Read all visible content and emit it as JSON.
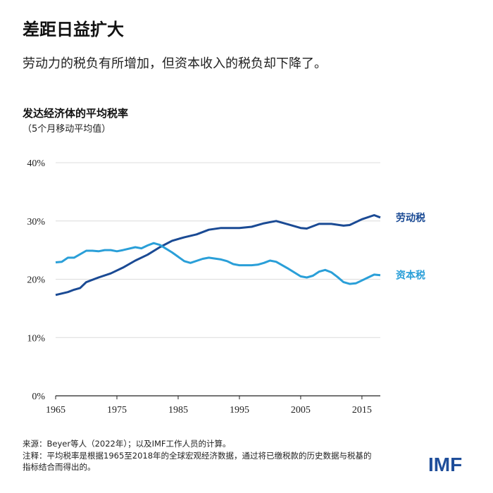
{
  "header": {
    "title": "差距日益扩大",
    "subtitle": "劳动力的税负有所增加，但资本收入的税负却下降了。"
  },
  "chart_data": {
    "type": "line",
    "title": "发达经济体的平均税率",
    "subtitle": "（5个月移动平均值）",
    "xlim": [
      1965,
      2018
    ],
    "ylim": [
      0,
      40
    ],
    "xticks": [
      1965,
      1975,
      1985,
      1995,
      2005,
      2015
    ],
    "xtick_labels": [
      "1965",
      "1975",
      "1985",
      "1995",
      "2005",
      "2015"
    ],
    "yticks": [
      0,
      10,
      20,
      30,
      40
    ],
    "ytick_labels": [
      "0%",
      "10%",
      "20%",
      "30%",
      "40%"
    ],
    "grid": "horizontal",
    "legend": "direct labels at right",
    "series": [
      {
        "name": "劳动税",
        "color": "#1a4a94",
        "points": [
          [
            1965,
            17.3
          ],
          [
            1967,
            17.8
          ],
          [
            1968,
            18.2
          ],
          [
            1969,
            18.5
          ],
          [
            1970,
            19.5
          ],
          [
            1972,
            20.3
          ],
          [
            1974,
            21.0
          ],
          [
            1976,
            22.0
          ],
          [
            1978,
            23.2
          ],
          [
            1980,
            24.2
          ],
          [
            1982,
            25.5
          ],
          [
            1984,
            26.6
          ],
          [
            1986,
            27.2
          ],
          [
            1988,
            27.7
          ],
          [
            1990,
            28.5
          ],
          [
            1992,
            28.8
          ],
          [
            1995,
            28.8
          ],
          [
            1997,
            29.0
          ],
          [
            1999,
            29.6
          ],
          [
            2001,
            30.0
          ],
          [
            2003,
            29.4
          ],
          [
            2005,
            28.8
          ],
          [
            2006,
            28.7
          ],
          [
            2008,
            29.5
          ],
          [
            2010,
            29.5
          ],
          [
            2012,
            29.2
          ],
          [
            2013,
            29.3
          ],
          [
            2015,
            30.3
          ],
          [
            2017,
            31.0
          ],
          [
            2018,
            30.6
          ]
        ]
      },
      {
        "name": "资本税",
        "color": "#2a9fd8",
        "points": [
          [
            1965,
            22.9
          ],
          [
            1966,
            23.0
          ],
          [
            1967,
            23.7
          ],
          [
            1968,
            23.7
          ],
          [
            1970,
            24.9
          ],
          [
            1971,
            24.9
          ],
          [
            1972,
            24.8
          ],
          [
            1973,
            25.0
          ],
          [
            1974,
            25.0
          ],
          [
            1975,
            24.8
          ],
          [
            1976,
            25.0
          ],
          [
            1978,
            25.5
          ],
          [
            1979,
            25.3
          ],
          [
            1980,
            25.8
          ],
          [
            1981,
            26.2
          ],
          [
            1982,
            25.9
          ],
          [
            1984,
            24.6
          ],
          [
            1986,
            23.1
          ],
          [
            1987,
            22.8
          ],
          [
            1989,
            23.5
          ],
          [
            1990,
            23.7
          ],
          [
            1992,
            23.4
          ],
          [
            1993,
            23.1
          ],
          [
            1994,
            22.6
          ],
          [
            1995,
            22.4
          ],
          [
            1997,
            22.4
          ],
          [
            1998,
            22.5
          ],
          [
            1999,
            22.8
          ],
          [
            2000,
            23.2
          ],
          [
            2001,
            23.0
          ],
          [
            2003,
            21.8
          ],
          [
            2005,
            20.5
          ],
          [
            2006,
            20.3
          ],
          [
            2007,
            20.6
          ],
          [
            2008,
            21.3
          ],
          [
            2009,
            21.6
          ],
          [
            2010,
            21.2
          ],
          [
            2011,
            20.4
          ],
          [
            2012,
            19.5
          ],
          [
            2013,
            19.2
          ],
          [
            2014,
            19.3
          ],
          [
            2015,
            19.8
          ],
          [
            2016,
            20.3
          ],
          [
            2017,
            20.8
          ],
          [
            2018,
            20.7
          ]
        ]
      }
    ]
  },
  "footer": {
    "source": "来源：Beyer等人（2022年）；以及IMF工作人员的计算。",
    "note_line1": "注释：平均税率是根据1965至2018年的全球宏观经济数据，通过将已缴税款的历史数据与税基的",
    "note_line2": "指标结合而得出的。"
  },
  "logo": {
    "text": "IMF",
    "color": "#1f4e9a"
  }
}
